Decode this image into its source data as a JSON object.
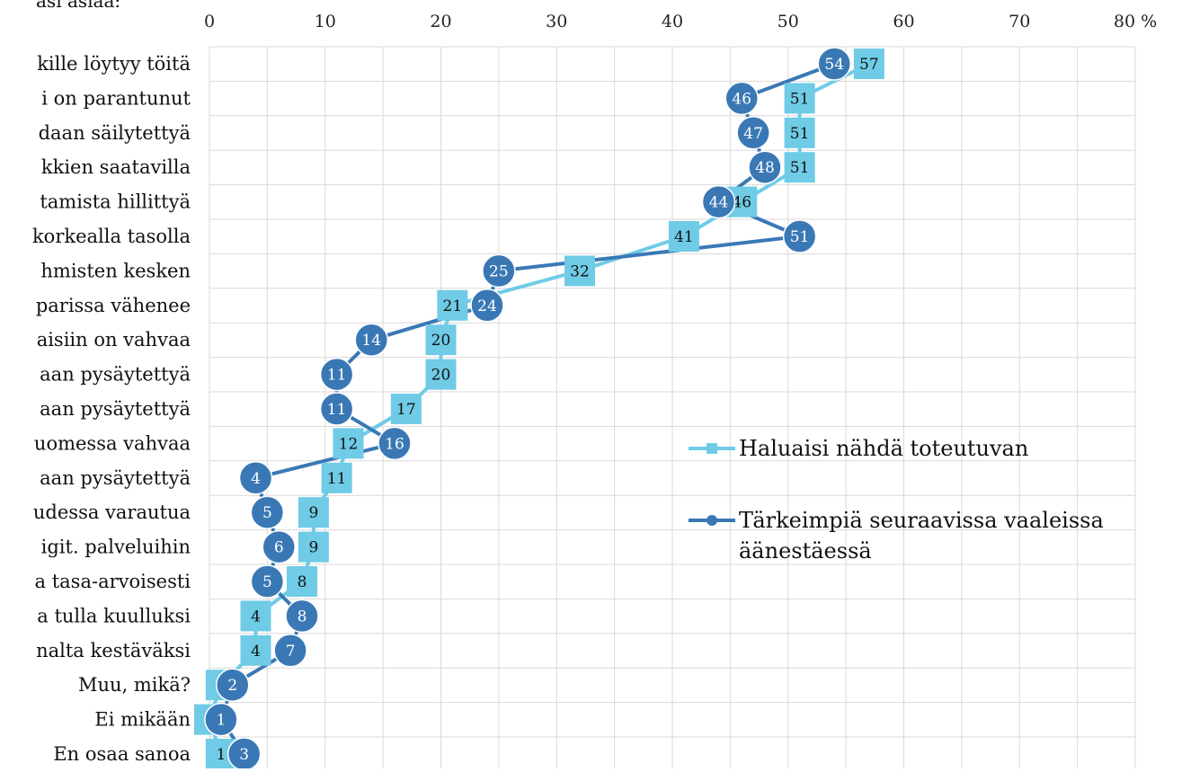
{
  "chart_data": {
    "type": "line",
    "title_fragment": "asi asiaa:",
    "xlabel": "",
    "ylabel": "",
    "x_axis": {
      "ticks": [
        "0",
        "10",
        "20",
        "30",
        "40",
        "50",
        "60",
        "70",
        "80 %"
      ],
      "range": [
        0,
        80
      ],
      "position": "top"
    },
    "grid": true,
    "categories": [
      "kille löytyy töitä",
      "i on parantunut",
      "daan säilytettyä",
      "kkien saatavilla",
      "tamista hillittyä",
      "korkealla tasolla",
      "hmisten kesken",
      "parissa vähenee",
      "aisiin on vahvaa",
      "aan pysäytettyä",
      "aan pysäytettyä",
      "uomessa vahvaa",
      "aan pysäytettyä",
      "udessa varautua",
      "igit. palveluihin",
      "a tasa-arvoisesti",
      "a tulla kuulluksi",
      "nalta kestäväksi",
      "Muu, mikä?",
      "Ei mikään",
      "En osaa sanoa"
    ],
    "series": [
      {
        "name": "Haluaisi nähdä toteutuvan",
        "color": "#6fcbe6",
        "marker": "square",
        "values": [
          57,
          51,
          51,
          51,
          46,
          41,
          32,
          21,
          20,
          20,
          17,
          12,
          11,
          9,
          9,
          8,
          4,
          4,
          1,
          0,
          1
        ]
      },
      {
        "name": "Tärkeimpiä seuraavissa vaaleissa äänestäessä",
        "name_lines": [
          "Tärkeimpiä seuraavissa vaaleissa",
          "äänestäessä"
        ],
        "color": "#3a78b5",
        "marker": "circle",
        "values": [
          54,
          46,
          47,
          48,
          44,
          51,
          25,
          24,
          14,
          11,
          11,
          16,
          4,
          5,
          6,
          5,
          8,
          7,
          2,
          1,
          3
        ]
      }
    ],
    "legend": {
      "placement": "right"
    }
  }
}
